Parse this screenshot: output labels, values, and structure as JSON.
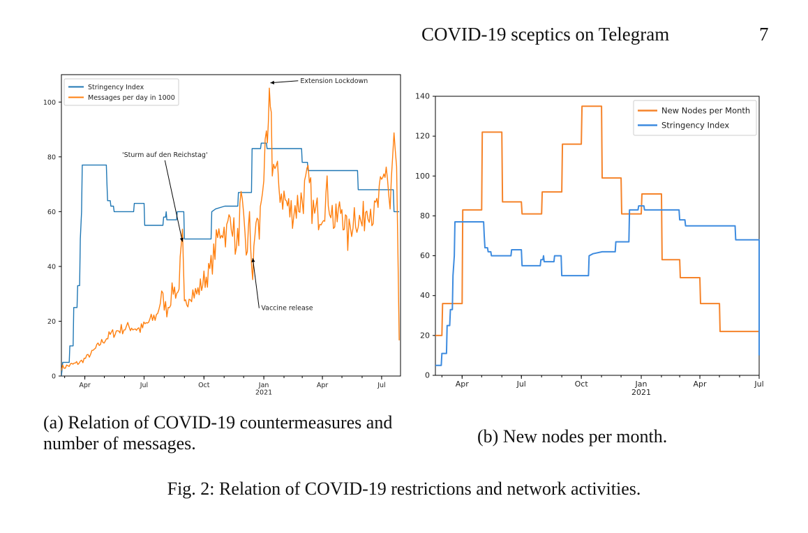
{
  "header": {
    "running_title": "COVID-19 sceptics on Telegram",
    "page_number": "7"
  },
  "captions": {
    "a": "(a) Relation of COVID-19 countermeasures and number of messages.",
    "b": "(b) New nodes per month.",
    "figure": "Fig. 2: Relation of COVID-19 restrictions and network activities."
  },
  "chart_data": [
    {
      "type": "line",
      "xlim": [
        "2020-02-25",
        "2021-07-30"
      ],
      "ylim": [
        0,
        110
      ],
      "yticks": [
        0,
        20,
        40,
        60,
        80,
        100
      ],
      "xtick_labels": [
        {
          "date": "2020-04-01",
          "label": "Apr",
          "sub": ""
        },
        {
          "date": "2020-07-01",
          "label": "Jul",
          "sub": ""
        },
        {
          "date": "2020-10-01",
          "label": "Oct",
          "sub": ""
        },
        {
          "date": "2021-01-01",
          "label": "Jan",
          "sub": "2021"
        },
        {
          "date": "2021-04-01",
          "label": "Apr",
          "sub": ""
        },
        {
          "date": "2021-07-01",
          "label": "Jul",
          "sub": ""
        }
      ],
      "legend": {
        "placement": "top-left"
      },
      "series": [
        {
          "name": "Stringency Index",
          "color": "#1f77b4",
          "step": true,
          "points": [
            [
              "2020-02-25",
              0
            ],
            [
              "2020-02-27",
              5
            ],
            [
              "2020-03-08",
              5
            ],
            [
              "2020-03-09",
              11
            ],
            [
              "2020-03-14",
              11
            ],
            [
              "2020-03-15",
              25
            ],
            [
              "2020-03-20",
              25
            ],
            [
              "2020-03-21",
              33
            ],
            [
              "2020-03-24",
              33
            ],
            [
              "2020-03-25",
              50
            ],
            [
              "2020-03-27",
              60
            ],
            [
              "2020-03-28",
              77
            ],
            [
              "2020-05-04",
              77
            ],
            [
              "2020-05-05",
              70
            ],
            [
              "2020-05-06",
              64
            ],
            [
              "2020-05-10",
              64
            ],
            [
              "2020-05-11",
              62
            ],
            [
              "2020-05-15",
              62
            ],
            [
              "2020-05-16",
              60
            ],
            [
              "2020-06-15",
              60
            ],
            [
              "2020-06-16",
              63
            ],
            [
              "2020-07-01",
              63
            ],
            [
              "2020-07-02",
              55
            ],
            [
              "2020-07-30",
              55
            ],
            [
              "2020-07-31",
              58
            ],
            [
              "2020-08-03",
              58
            ],
            [
              "2020-08-04",
              60
            ],
            [
              "2020-08-05",
              57
            ],
            [
              "2020-08-20",
              57
            ],
            [
              "2020-08-21",
              60
            ],
            [
              "2020-08-31",
              60
            ],
            [
              "2020-09-01",
              50
            ],
            [
              "2020-10-12",
              50
            ],
            [
              "2020-10-13",
              60
            ],
            [
              "2020-10-19",
              61
            ],
            [
              "2020-11-02",
              62
            ],
            [
              "2020-11-22",
              62
            ],
            [
              "2020-11-23",
              67
            ],
            [
              "2020-12-13",
              67
            ],
            [
              "2020-12-14",
              83
            ],
            [
              "2020-12-27",
              83
            ],
            [
              "2020-12-28",
              85
            ],
            [
              "2021-01-05",
              85
            ],
            [
              "2021-01-06",
              83
            ],
            [
              "2021-02-28",
              83
            ],
            [
              "2021-03-01",
              78
            ],
            [
              "2021-03-09",
              78
            ],
            [
              "2021-03-10",
              75
            ],
            [
              "2021-05-25",
              75
            ],
            [
              "2021-05-26",
              68
            ],
            [
              "2021-07-19",
              68
            ],
            [
              "2021-07-20",
              60
            ],
            [
              "2021-07-28",
              60
            ]
          ]
        },
        {
          "name": "Messages per day in 1000",
          "color": "#ff7f0e",
          "step": false,
          "points": [
            [
              "2020-02-25",
              3
            ],
            [
              "2020-03-10",
              4
            ],
            [
              "2020-03-25",
              5
            ],
            [
              "2020-04-10",
              8
            ],
            [
              "2020-04-25",
              12
            ],
            [
              "2020-05-10",
              15
            ],
            [
              "2020-05-25",
              17
            ],
            [
              "2020-06-10",
              18
            ],
            [
              "2020-06-25",
              17
            ],
            [
              "2020-07-10",
              20
            ],
            [
              "2020-07-20",
              22
            ],
            [
              "2020-07-28",
              29
            ],
            [
              "2020-08-05",
              24
            ],
            [
              "2020-08-15",
              32
            ],
            [
              "2020-08-22",
              30
            ],
            [
              "2020-08-29",
              49
            ],
            [
              "2020-09-01",
              25
            ],
            [
              "2020-09-10",
              31
            ],
            [
              "2020-09-20",
              30
            ],
            [
              "2020-10-01",
              35
            ],
            [
              "2020-10-10",
              38
            ],
            [
              "2020-10-20",
              48
            ],
            [
              "2020-10-28",
              55
            ],
            [
              "2020-11-05",
              52
            ],
            [
              "2020-11-12",
              60
            ],
            [
              "2020-11-20",
              45
            ],
            [
              "2020-11-27",
              62
            ],
            [
              "2020-12-05",
              45
            ],
            [
              "2020-12-10",
              55
            ],
            [
              "2020-12-15",
              36
            ],
            [
              "2020-12-20",
              58
            ],
            [
              "2020-12-25",
              52
            ],
            [
              "2020-12-30",
              72
            ],
            [
              "2021-01-05",
              80
            ],
            [
              "2021-01-08",
              85
            ],
            [
              "2021-01-11",
              106
            ],
            [
              "2021-01-14",
              80
            ],
            [
              "2021-01-20",
              72
            ],
            [
              "2021-02-01",
              65
            ],
            [
              "2021-02-10",
              60
            ],
            [
              "2021-02-20",
              62
            ],
            [
              "2021-03-01",
              65
            ],
            [
              "2021-03-10",
              70
            ],
            [
              "2021-03-20",
              58
            ],
            [
              "2021-04-01",
              62
            ],
            [
              "2021-04-10",
              67
            ],
            [
              "2021-04-20",
              55
            ],
            [
              "2021-05-01",
              62
            ],
            [
              "2021-05-10",
              50
            ],
            [
              "2021-05-20",
              60
            ],
            [
              "2021-06-01",
              55
            ],
            [
              "2021-06-10",
              65
            ],
            [
              "2021-06-20",
              58
            ],
            [
              "2021-07-01",
              67
            ],
            [
              "2021-07-08",
              78
            ],
            [
              "2021-07-14",
              60
            ],
            [
              "2021-07-20",
              86
            ],
            [
              "2021-07-24",
              70
            ],
            [
              "2021-07-28",
              13
            ]
          ]
        }
      ],
      "annotations": [
        {
          "text": "'Sturm auf den Reichstag'",
          "target": [
            "2020-08-29",
            49
          ],
          "label_at": [
            "2020-08-02",
            80
          ]
        },
        {
          "text": "Extension Lockdown",
          "target": [
            "2021-01-11",
            107
          ],
          "label_at": [
            "2021-02-26",
            107
          ]
        },
        {
          "text": "Vaccine release",
          "target": [
            "2020-12-15",
            43
          ],
          "label_at": [
            "2020-12-28",
            24
          ]
        }
      ]
    },
    {
      "type": "line",
      "xlim": [
        "2020-02-20",
        "2021-07-01"
      ],
      "ylim": [
        0,
        140
      ],
      "yticks": [
        0,
        20,
        40,
        60,
        80,
        100,
        120,
        140
      ],
      "xtick_labels": [
        {
          "date": "2020-04-01",
          "label": "Apr",
          "sub": ""
        },
        {
          "date": "2020-07-01",
          "label": "Jul",
          "sub": ""
        },
        {
          "date": "2020-10-01",
          "label": "Oct",
          "sub": ""
        },
        {
          "date": "2021-01-01",
          "label": "Jan",
          "sub": "2021"
        },
        {
          "date": "2021-04-01",
          "label": "Apr",
          "sub": ""
        },
        {
          "date": "2021-07-01",
          "label": "Jul",
          "sub": ""
        }
      ],
      "legend": {
        "placement": "top-right"
      },
      "series": [
        {
          "name": "New Nodes per Month",
          "color": "#f5832a",
          "step": true,
          "points": [
            [
              "2020-02-20",
              20
            ],
            [
              "2020-03-01",
              20
            ],
            [
              "2020-03-02",
              36
            ],
            [
              "2020-04-01",
              36
            ],
            [
              "2020-04-02",
              83
            ],
            [
              "2020-05-01",
              83
            ],
            [
              "2020-05-02",
              122
            ],
            [
              "2020-06-01",
              122
            ],
            [
              "2020-06-02",
              87
            ],
            [
              "2020-07-01",
              87
            ],
            [
              "2020-07-02",
              81
            ],
            [
              "2020-08-01",
              81
            ],
            [
              "2020-08-02",
              92
            ],
            [
              "2020-09-01",
              92
            ],
            [
              "2020-09-02",
              116
            ],
            [
              "2020-10-01",
              116
            ],
            [
              "2020-10-02",
              135
            ],
            [
              "2020-11-01",
              135
            ],
            [
              "2020-11-02",
              99
            ],
            [
              "2020-12-01",
              99
            ],
            [
              "2020-12-02",
              81
            ],
            [
              "2021-01-01",
              81
            ],
            [
              "2021-01-02",
              91
            ],
            [
              "2021-02-01",
              91
            ],
            [
              "2021-02-02",
              58
            ],
            [
              "2021-03-01",
              58
            ],
            [
              "2021-03-02",
              49
            ],
            [
              "2021-04-01",
              49
            ],
            [
              "2021-04-02",
              36
            ],
            [
              "2021-05-01",
              36
            ],
            [
              "2021-05-02",
              22
            ],
            [
              "2021-07-01",
              22
            ],
            [
              "2021-07-01",
              17
            ]
          ]
        },
        {
          "name": "Stringency Index",
          "color": "#3d8bdf",
          "step": true,
          "points": [
            [
              "2020-02-20",
              5
            ],
            [
              "2020-02-29",
              5
            ],
            [
              "2020-03-01",
              11
            ],
            [
              "2020-03-08",
              11
            ],
            [
              "2020-03-09",
              25
            ],
            [
              "2020-03-13",
              25
            ],
            [
              "2020-03-14",
              33
            ],
            [
              "2020-03-17",
              33
            ],
            [
              "2020-03-18",
              50
            ],
            [
              "2020-03-20",
              60
            ],
            [
              "2020-03-21",
              77
            ],
            [
              "2020-05-04",
              77
            ],
            [
              "2020-05-05",
              70
            ],
            [
              "2020-05-06",
              64
            ],
            [
              "2020-05-10",
              64
            ],
            [
              "2020-05-11",
              62
            ],
            [
              "2020-05-15",
              62
            ],
            [
              "2020-05-16",
              60
            ],
            [
              "2020-06-15",
              60
            ],
            [
              "2020-06-16",
              63
            ],
            [
              "2020-07-01",
              63
            ],
            [
              "2020-07-02",
              55
            ],
            [
              "2020-07-30",
              55
            ],
            [
              "2020-07-31",
              58
            ],
            [
              "2020-08-03",
              58
            ],
            [
              "2020-08-04",
              60
            ],
            [
              "2020-08-05",
              57
            ],
            [
              "2020-08-20",
              57
            ],
            [
              "2020-08-21",
              60
            ],
            [
              "2020-08-31",
              60
            ],
            [
              "2020-09-01",
              50
            ],
            [
              "2020-10-12",
              50
            ],
            [
              "2020-10-13",
              60
            ],
            [
              "2020-10-19",
              61
            ],
            [
              "2020-11-02",
              62
            ],
            [
              "2020-11-22",
              62
            ],
            [
              "2020-11-23",
              67
            ],
            [
              "2020-12-13",
              67
            ],
            [
              "2020-12-14",
              83
            ],
            [
              "2020-12-27",
              83
            ],
            [
              "2020-12-28",
              85
            ],
            [
              "2021-01-05",
              85
            ],
            [
              "2021-01-06",
              83
            ],
            [
              "2021-02-28",
              83
            ],
            [
              "2021-03-01",
              78
            ],
            [
              "2021-03-09",
              78
            ],
            [
              "2021-03-10",
              75
            ],
            [
              "2021-05-25",
              75
            ],
            [
              "2021-05-26",
              68
            ],
            [
              "2021-07-01",
              68
            ],
            [
              "2021-07-01",
              10
            ]
          ]
        }
      ],
      "annotations": []
    }
  ]
}
